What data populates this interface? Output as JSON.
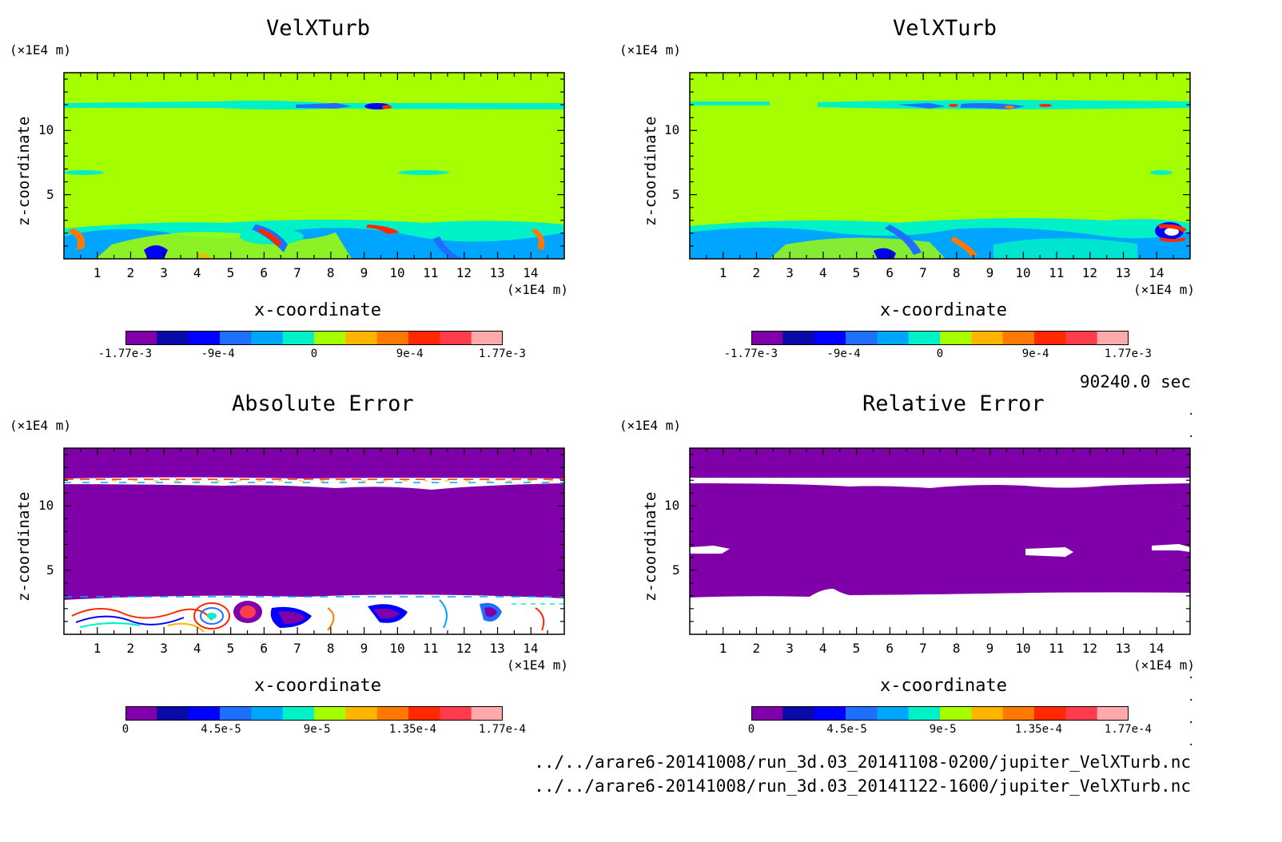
{
  "colorbar_colors": [
    "#7f00a9",
    "#0a0aa8",
    "#0000ff",
    "#1f6fff",
    "#00a5ff",
    "#00f0c8",
    "#a5ff00",
    "#ffb400",
    "#ff7800",
    "#ff2800",
    "#ff3c4b",
    "#ffaaaa"
  ],
  "chart_data": [
    {
      "type": "heatmap",
      "title": "VelXTurb",
      "xlabel": "x-coordinate",
      "ylabel": "z-coordinate",
      "x_unit": "(×1E4 m)",
      "y_unit": "(×1E4 m)",
      "xlim": [
        0,
        15
      ],
      "ylim": [
        0,
        14.5
      ],
      "xticks": [
        "1",
        "2",
        "3",
        "4",
        "5",
        "6",
        "7",
        "8",
        "9",
        "10",
        "11",
        "12",
        "13",
        "14"
      ],
      "yticks": [
        "5",
        "10"
      ],
      "colorbar_ticks": [
        "-1.77e-3",
        "-9e-4",
        "0",
        "9e-4",
        "1.77e-3"
      ],
      "colorbar_range": [
        -0.00177,
        0.00177
      ]
    },
    {
      "type": "heatmap",
      "title": "VelXTurb",
      "xlabel": "x-coordinate",
      "ylabel": "z-coordinate",
      "x_unit": "(×1E4 m)",
      "y_unit": "(×1E4 m)",
      "xlim": [
        0,
        15
      ],
      "ylim": [
        0,
        14.5
      ],
      "xticks": [
        "1",
        "2",
        "3",
        "4",
        "5",
        "6",
        "7",
        "8",
        "9",
        "10",
        "11",
        "12",
        "13",
        "14"
      ],
      "yticks": [
        "5",
        "10"
      ],
      "colorbar_ticks": [
        "-1.77e-3",
        "-9e-4",
        "0",
        "9e-4",
        "1.77e-3"
      ],
      "colorbar_range": [
        -0.00177,
        0.00177
      ]
    },
    {
      "type": "heatmap",
      "title": "Absolute Error",
      "xlabel": "x-coordinate",
      "ylabel": "z-coordinate",
      "x_unit": "(×1E4 m)",
      "y_unit": "(×1E4 m)",
      "xlim": [
        0,
        15
      ],
      "ylim": [
        0,
        14.5
      ],
      "xticks": [
        "1",
        "2",
        "3",
        "4",
        "5",
        "6",
        "7",
        "8",
        "9",
        "10",
        "11",
        "12",
        "13",
        "14"
      ],
      "yticks": [
        "5",
        "10"
      ],
      "colorbar_ticks": [
        "0",
        "4.5e-5",
        "9e-5",
        "1.35e-4",
        "1.77e-4"
      ],
      "colorbar_range": [
        0,
        0.000177
      ]
    },
    {
      "type": "heatmap",
      "title": "Relative Error",
      "xlabel": "x-coordinate",
      "ylabel": "z-coordinate",
      "x_unit": "(×1E4 m)",
      "y_unit": "(×1E4 m)",
      "xlim": [
        0,
        15
      ],
      "ylim": [
        0,
        14.5
      ],
      "xticks": [
        "1",
        "2",
        "3",
        "4",
        "5",
        "6",
        "7",
        "8",
        "9",
        "10",
        "11",
        "12",
        "13",
        "14"
      ],
      "yticks": [
        "5",
        "10"
      ],
      "colorbar_ticks": [
        "0",
        "4.5e-5",
        "9e-5",
        "1.35e-4",
        "1.77e-4"
      ],
      "colorbar_range": [
        0,
        0.000177
      ]
    }
  ],
  "info": {
    "time": "90240.0 sec",
    "file1": "../../arare6-20141008/run_3d.03_20141108-0200/jupiter_VelXTurb.nc",
    "file2": "../../arare6-20141008/run_3d.03_20141122-1600/jupiter_VelXTurb.nc"
  }
}
